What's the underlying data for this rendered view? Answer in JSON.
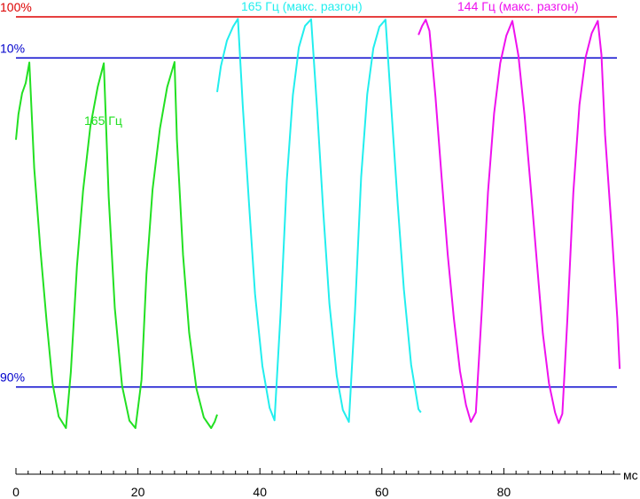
{
  "chart_data": {
    "type": "line",
    "xlabel": "мс",
    "xlim": [
      0,
      99
    ],
    "ylim": [
      0,
      100
    ],
    "x_ticks": [
      0,
      20,
      40,
      60,
      80
    ],
    "reference_lines": [
      {
        "label": "100%",
        "value": 100,
        "color": "#dd0000"
      },
      {
        "label": "10%",
        "value": 90,
        "color": "#0000cc"
      },
      {
        "label": "90%",
        "value": 10,
        "color": "#0000cc"
      }
    ],
    "series": [
      {
        "name": "165 Гц",
        "color": "#22e022",
        "x": [
          0.0,
          0.4,
          1.0,
          1.6,
          2.2,
          3.0,
          4.0,
          5.0,
          6.0,
          7.0,
          8.2,
          9.0,
          10.0,
          11.0,
          12.2,
          13.4,
          14.4,
          15.2,
          16.2,
          17.4,
          18.6,
          19.6,
          20.6,
          21.4,
          22.4,
          23.6,
          24.8,
          26.0,
          26.4,
          27.4,
          28.4,
          29.6,
          30.8,
          32.0,
          32.6,
          33.0
        ],
        "y": [
          70.1,
          76.3,
          81.4,
          83.9,
          88.9,
          63.2,
          43.6,
          26.4,
          10.9,
          2.8,
          0.0,
          13.6,
          39.3,
          57.7,
          73.3,
          82.9,
          88.7,
          56.3,
          29.2,
          10.3,
          1.8,
          0.0,
          11.8,
          37.4,
          58.0,
          72.8,
          82.9,
          89.0,
          70.1,
          42.1,
          23.2,
          9.6,
          2.6,
          0.0,
          1.6,
          3.3
        ]
      },
      {
        "name": "165 Гц (макс. разгон)",
        "color": "#22eeee",
        "x": [
          33.0,
          33.6,
          34.6,
          35.6,
          36.4,
          37.2,
          38.2,
          39.2,
          40.4,
          41.6,
          42.4,
          43.4,
          44.4,
          45.4,
          46.4,
          47.4,
          48.4,
          49.4,
          50.4,
          51.4,
          52.6,
          53.6,
          54.6,
          55.6,
          56.6,
          57.6,
          58.6,
          59.6,
          60.6,
          61.6,
          62.6,
          63.6,
          64.8,
          66.0,
          66.4
        ],
        "y": [
          81.7,
          88.0,
          94.2,
          97.6,
          99.5,
          78.3,
          55.0,
          32.6,
          15.1,
          4.9,
          1.9,
          28.2,
          60.1,
          81.0,
          92.6,
          97.8,
          99.4,
          77.0,
          52.3,
          30.3,
          12.7,
          4.4,
          1.5,
          28.4,
          61.0,
          81.2,
          92.4,
          97.6,
          99.3,
          76.7,
          54.4,
          33.8,
          15.4,
          4.6,
          3.8
        ]
      },
      {
        "name": "144 Гц (макс. разгон)",
        "color": "#ee11ee",
        "x": [
          66.0,
          66.6,
          67.2,
          67.8,
          68.8,
          69.8,
          70.8,
          71.8,
          72.8,
          73.8,
          74.6,
          75.4,
          76.4,
          77.4,
          78.4,
          79.4,
          80.4,
          81.4,
          82.4,
          83.4,
          84.4,
          85.4,
          86.4,
          87.4,
          88.4,
          89.0,
          89.6,
          90.4,
          91.4,
          92.4,
          93.4,
          94.4,
          95.4,
          96.0,
          96.6,
          97.6,
          98.6,
          99.0
        ],
        "y": [
          95.6,
          97.8,
          99.3,
          96.6,
          80.5,
          61.0,
          42.2,
          26.7,
          13.9,
          5.6,
          1.5,
          3.8,
          28.9,
          57.3,
          76.5,
          88.7,
          95.4,
          99.0,
          90.5,
          76.0,
          58.6,
          40.5,
          23.0,
          10.9,
          3.8,
          1.2,
          3.5,
          26.2,
          57.3,
          78.6,
          90.1,
          96.0,
          99.0,
          90.8,
          71.3,
          49.9,
          26.7,
          14.4
        ]
      }
    ]
  }
}
